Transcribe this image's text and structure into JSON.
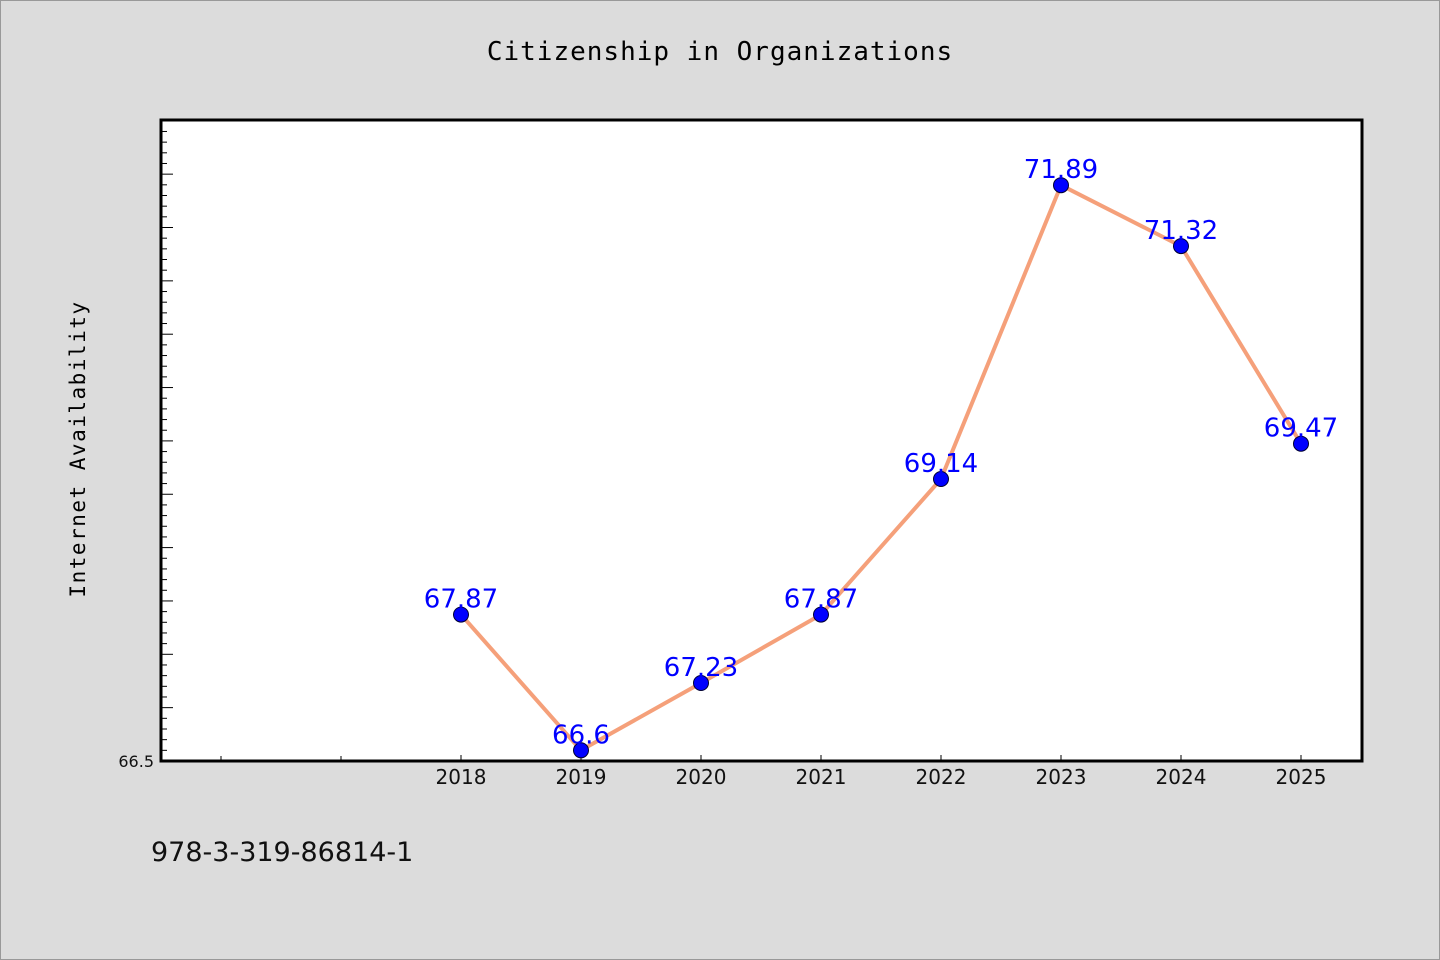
{
  "figure": {
    "background_color": "#dcdcdc",
    "plot_background_color": "#ffffff",
    "isbn": "978-3-319-86814-1"
  },
  "chart_data": {
    "type": "line",
    "title": "Citizenship in Organizations",
    "xlabel": "",
    "ylabel": "Internet Availability",
    "categories": [
      "2018",
      "2019",
      "2020",
      "2021",
      "2022",
      "2023",
      "2024",
      "2025"
    ],
    "series": [
      {
        "values": [
          67.87,
          66.6,
          67.23,
          67.87,
          69.14,
          71.89,
          71.32,
          69.47
        ],
        "data_labels": [
          "67.87",
          "66.6",
          "67.23",
          "67.87",
          "69.14",
          "71.89",
          "71.32",
          "69.47"
        ],
        "line_color": "#f5a07a",
        "marker_color": "#0000ff",
        "label_color": "#0000ff"
      }
    ],
    "ylim": [
      66.5,
      72.5
    ],
    "y_tick_labels": [
      "66.5"
    ],
    "grid": false,
    "legend": "none"
  }
}
